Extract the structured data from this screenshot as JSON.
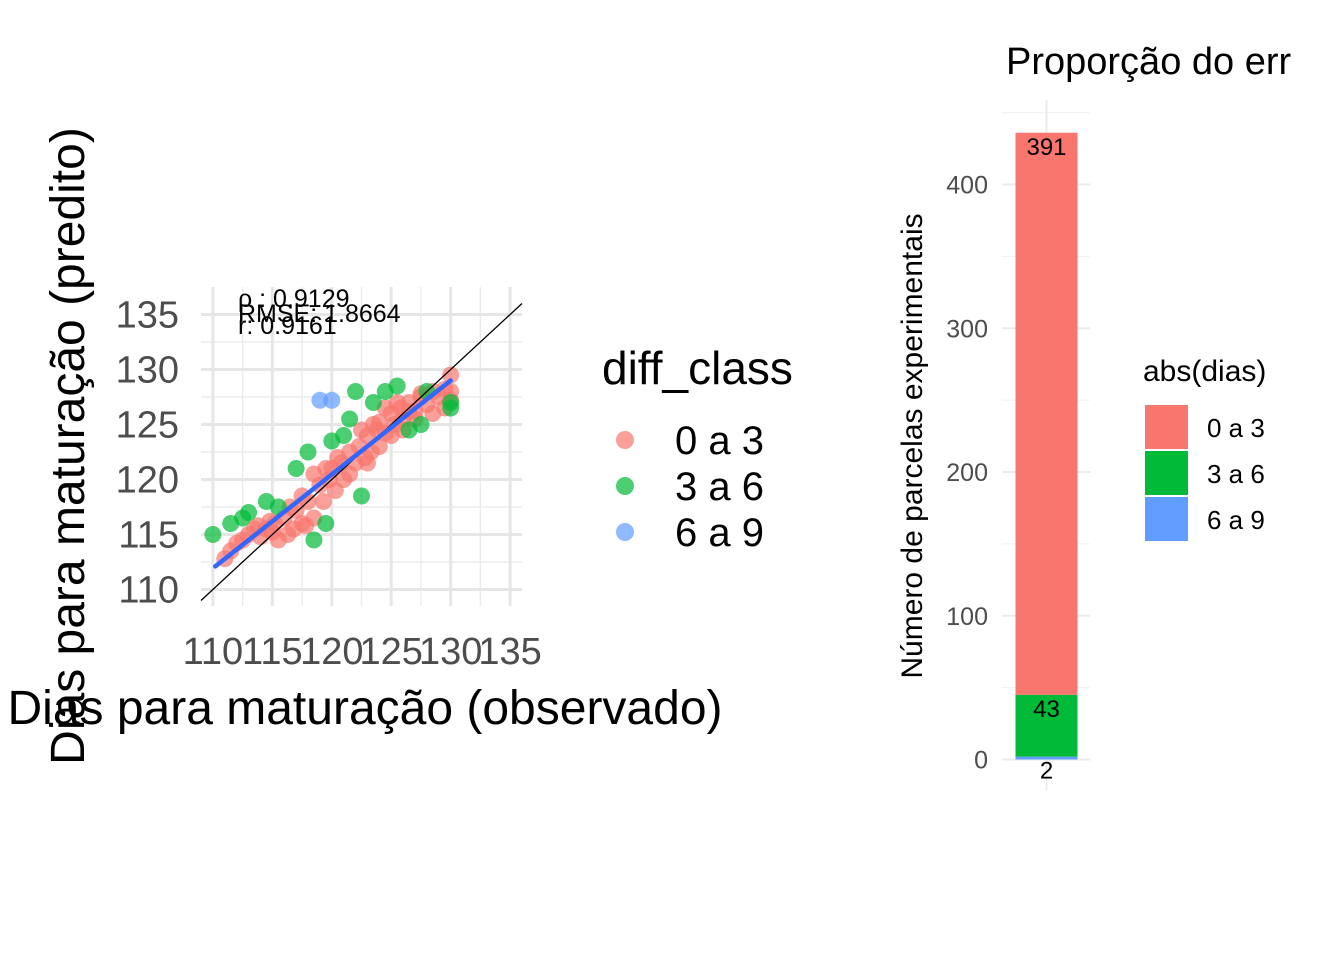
{
  "chart_data": [
    {
      "type": "scatter",
      "xlabel": "Dias para maturação (observado)",
      "ylabel": "Dias para maturação (predito)",
      "xlim": [
        109,
        136
      ],
      "ylim": [
        108.5,
        137.5
      ],
      "x_ticks": [
        "110",
        "115",
        "120",
        "125",
        "130",
        "135"
      ],
      "y_ticks": [
        "110",
        "115",
        "120",
        "125",
        "130",
        "135"
      ],
      "grid": true,
      "identity_line": true,
      "fit_line": {
        "x": [
          110.2,
          130
        ],
        "y": [
          112.1,
          129
        ]
      },
      "annotations": [
        "ρ : 0.9129",
        "RMSE: 1.8664",
        "r:   0.9161"
      ],
      "legend": {
        "title": "diff_class",
        "placement": "right",
        "entries": [
          {
            "label": "0 a 3",
            "color": "#F8766D"
          },
          {
            "label": "3 a 6",
            "color": "#00BA38"
          },
          {
            "label": "6 a 9",
            "color": "#619CFF"
          }
        ]
      },
      "series": [
        {
          "name": "0 a 3",
          "color": "#F8766D",
          "points": [
            [
              111,
              112.8
            ],
            [
              111.5,
              113.5
            ],
            [
              112,
              114.2
            ],
            [
              112.5,
              114.5
            ],
            [
              113,
              115
            ],
            [
              113.5,
              115.5
            ],
            [
              114,
              114.8
            ],
            [
              114.5,
              115.5
            ],
            [
              115,
              115.2
            ],
            [
              115.2,
              116
            ],
            [
              115.5,
              114.5
            ],
            [
              116,
              116.5
            ],
            [
              116.3,
              115
            ],
            [
              116.8,
              115.5
            ],
            [
              117,
              117.2
            ],
            [
              117.5,
              116
            ],
            [
              117.8,
              115.8
            ],
            [
              118,
              118
            ],
            [
              118.5,
              116.5
            ],
            [
              119,
              119.5
            ],
            [
              119.3,
              118
            ],
            [
              119.8,
              120
            ],
            [
              120,
              121
            ],
            [
              120.3,
              119
            ],
            [
              120.8,
              121.5
            ],
            [
              121,
              120
            ],
            [
              121.5,
              122.5
            ],
            [
              122,
              121.5
            ],
            [
              122.3,
              123
            ],
            [
              122.8,
              122
            ],
            [
              123,
              124
            ],
            [
              123.3,
              122.5
            ],
            [
              123.8,
              124.5
            ],
            [
              124,
              125.2
            ],
            [
              124.5,
              124.2
            ],
            [
              125,
              126
            ],
            [
              125.3,
              125
            ],
            [
              125.8,
              126.5
            ],
            [
              126,
              125.5
            ],
            [
              126.5,
              127
            ],
            [
              127,
              126.2
            ],
            [
              127.5,
              127.5
            ],
            [
              128,
              126.8
            ],
            [
              128.5,
              128
            ],
            [
              129,
              127.5
            ],
            [
              129.5,
              128.2
            ],
            [
              130,
              129.5
            ],
            [
              130,
              128
            ],
            [
              130,
              127.2
            ],
            [
              129.5,
              126.5
            ],
            [
              128.5,
              126
            ],
            [
              127.5,
              127.8
            ],
            [
              126.5,
              126.2
            ],
            [
              125.5,
              127
            ],
            [
              124.5,
              126.5
            ],
            [
              123.5,
              125
            ],
            [
              122.5,
              124.5
            ],
            [
              121.5,
              120.5
            ],
            [
              120.5,
              122
            ],
            [
              119.5,
              121
            ],
            [
              118.5,
              120.5
            ],
            [
              117.5,
              118.5
            ],
            [
              116.5,
              117.5
            ],
            [
              114.8,
              116.2
            ],
            [
              113.8,
              115.8
            ],
            [
              125,
              124
            ],
            [
              126,
              124.5
            ],
            [
              127,
              125.5
            ],
            [
              124,
              123
            ],
            [
              123,
              121.5
            ]
          ]
        },
        {
          "name": "3 a 6",
          "color": "#00BA38",
          "points": [
            [
              110,
              115
            ],
            [
              111.5,
              116
            ],
            [
              112.5,
              116.5
            ],
            [
              114.5,
              118
            ],
            [
              117,
              121
            ],
            [
              118.5,
              114.5
            ],
            [
              119.5,
              116
            ],
            [
              120,
              123.5
            ],
            [
              121,
              124
            ],
            [
              122,
              128
            ],
            [
              122.5,
              118.5
            ],
            [
              123.5,
              127
            ],
            [
              125.5,
              128.5
            ],
            [
              127.5,
              125
            ],
            [
              130,
              126.5
            ],
            [
              130,
              127
            ],
            [
              128,
              128
            ],
            [
              124.5,
              128
            ],
            [
              126.5,
              124.5
            ],
            [
              121.5,
              125.5
            ],
            [
              118,
              122.5
            ],
            [
              115.5,
              117.5
            ],
            [
              113,
              117
            ]
          ]
        },
        {
          "name": "6 a 9",
          "color": "#619CFF",
          "points": [
            [
              119,
              127.2
            ],
            [
              120,
              127.2
            ]
          ]
        }
      ]
    },
    {
      "type": "bar",
      "title": "Proporção do err",
      "ylabel": "Número de parcelas experimentais",
      "ylim": [
        0,
        450
      ],
      "y_ticks": [
        "0",
        "100",
        "200",
        "300",
        "400"
      ],
      "stacked": true,
      "legend": {
        "title": "abs(dias)",
        "placement": "right",
        "entries": [
          {
            "label": "0 a 3",
            "color": "#F8766D"
          },
          {
            "label": "3 a 6",
            "color": "#00BA38"
          },
          {
            "label": "6 a 9",
            "color": "#619CFF"
          }
        ]
      },
      "series": [
        {
          "name": "0 a 3",
          "value": 391,
          "label": "391",
          "color": "#F8766D"
        },
        {
          "name": "3 a 6",
          "value": 43,
          "label": "43",
          "color": "#00BA38"
        },
        {
          "name": "6 a 9",
          "value": 2,
          "label": "2",
          "color": "#619CFF"
        }
      ]
    }
  ]
}
